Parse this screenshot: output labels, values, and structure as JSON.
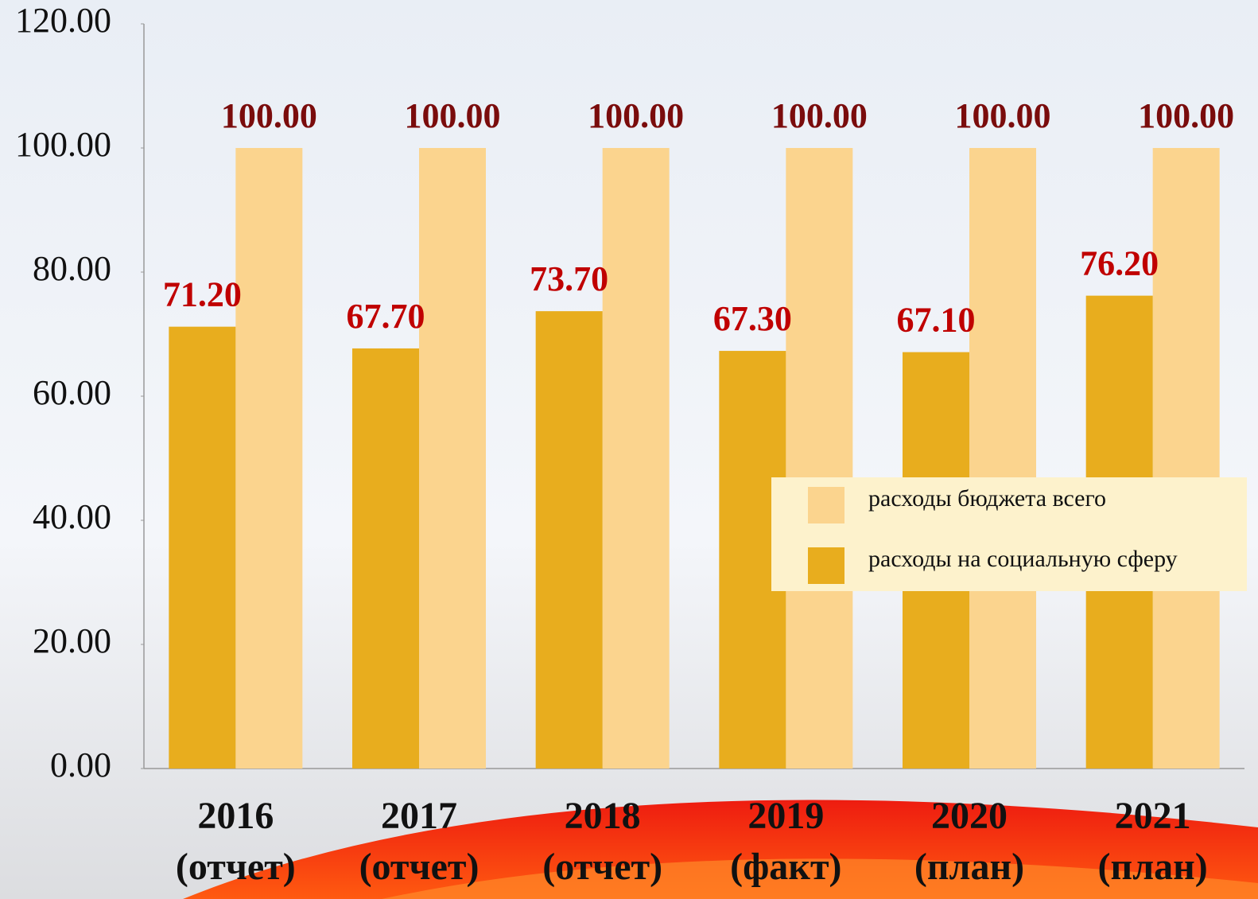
{
  "chart_data": {
    "type": "bar",
    "categories": [
      [
        "2016",
        "(отчет)"
      ],
      [
        "2017",
        "(отчет)"
      ],
      [
        "2018",
        "(отчет)"
      ],
      [
        "2019",
        "(факт)"
      ],
      [
        "2020",
        "(план)"
      ],
      [
        "2021",
        "(план)"
      ]
    ],
    "series": [
      {
        "name": "расходы бюджета всего",
        "color": "#fbd48e",
        "label_color": "#7a0c0c",
        "values": [
          100,
          100,
          100,
          100,
          100,
          100
        ],
        "value_labels": [
          "100.00",
          "100.00",
          "100.00",
          "100.00",
          "100.00",
          "100.00"
        ]
      },
      {
        "name": "расходы на социальную сферу",
        "color": "#e8ad1e",
        "label_color": "#c00000",
        "values": [
          71.2,
          67.7,
          73.7,
          67.3,
          67.1,
          76.2
        ],
        "value_labels": [
          "71.20",
          "67.70",
          "73.70",
          "67.30",
          "67.10",
          "76.20"
        ]
      }
    ],
    "ylim": [
      0,
      120
    ],
    "yticks": [
      {
        "value": 0,
        "label": "0.00"
      },
      {
        "value": 20,
        "label": "20.00"
      },
      {
        "value": 40,
        "label": "40.00"
      },
      {
        "value": 60,
        "label": "60.00"
      },
      {
        "value": 80,
        "label": "80.00"
      },
      {
        "value": 100,
        "label": "100.00"
      },
      {
        "value": 120,
        "label": "120.00"
      }
    ],
    "grid": false,
    "legend": "right"
  }
}
